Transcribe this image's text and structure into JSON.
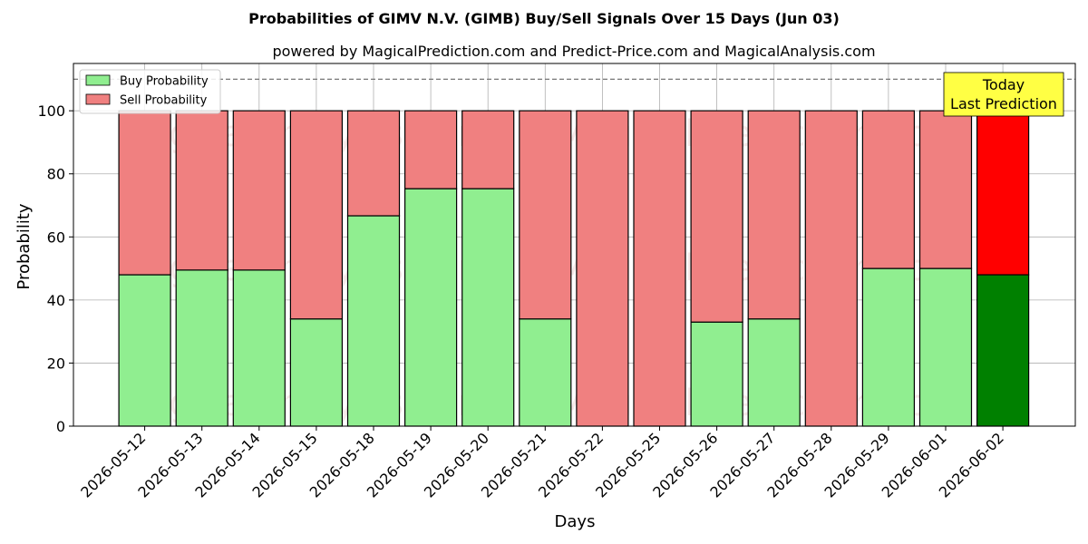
{
  "chart_data": {
    "type": "bar",
    "stacked": true,
    "title": "Probabilities of GIMV N.V. (GIMB) Buy/Sell Signals Over 15 Days (Jun 03)",
    "subtitle": "powered by MagicalPrediction.com and Predict-Price.com and MagicalAnalysis.com",
    "xlabel": "Days",
    "ylabel": "Probability",
    "ylim": [
      0,
      115
    ],
    "yticks": [
      0,
      20,
      40,
      60,
      80,
      100
    ],
    "reference_line": 110,
    "grid": true,
    "legend_position": "top-left",
    "categories": [
      "2026-05-12",
      "2026-05-13",
      "2026-05-14",
      "2026-05-15",
      "2026-05-18",
      "2026-05-19",
      "2026-05-20",
      "2026-05-21",
      "2026-05-22",
      "2026-05-25",
      "2026-05-26",
      "2026-05-27",
      "2026-05-28",
      "2026-05-29",
      "2026-06-01",
      "2026-06-02"
    ],
    "series": [
      {
        "name": "Buy Probability",
        "color": "#90ee90",
        "highlight_color": "#008000",
        "values": [
          48,
          49.5,
          49.5,
          34,
          66.7,
          75.3,
          75.3,
          34,
          0,
          0,
          33,
          34,
          0,
          50,
          50,
          48
        ]
      },
      {
        "name": "Sell Probability",
        "color": "#f08080",
        "highlight_color": "#ff0000",
        "values": [
          52,
          50.5,
          50.5,
          66,
          33.3,
          24.7,
          24.7,
          66,
          100,
          100,
          67,
          66,
          100,
          50,
          50,
          52
        ]
      }
    ],
    "highlight_index": 15,
    "annotation": {
      "line1": "Today",
      "line2": "Last Prediction",
      "background": "#ffff44"
    },
    "watermarks": [
      "MagicalAnalysis.com",
      "MagicalPrediction.com"
    ]
  }
}
